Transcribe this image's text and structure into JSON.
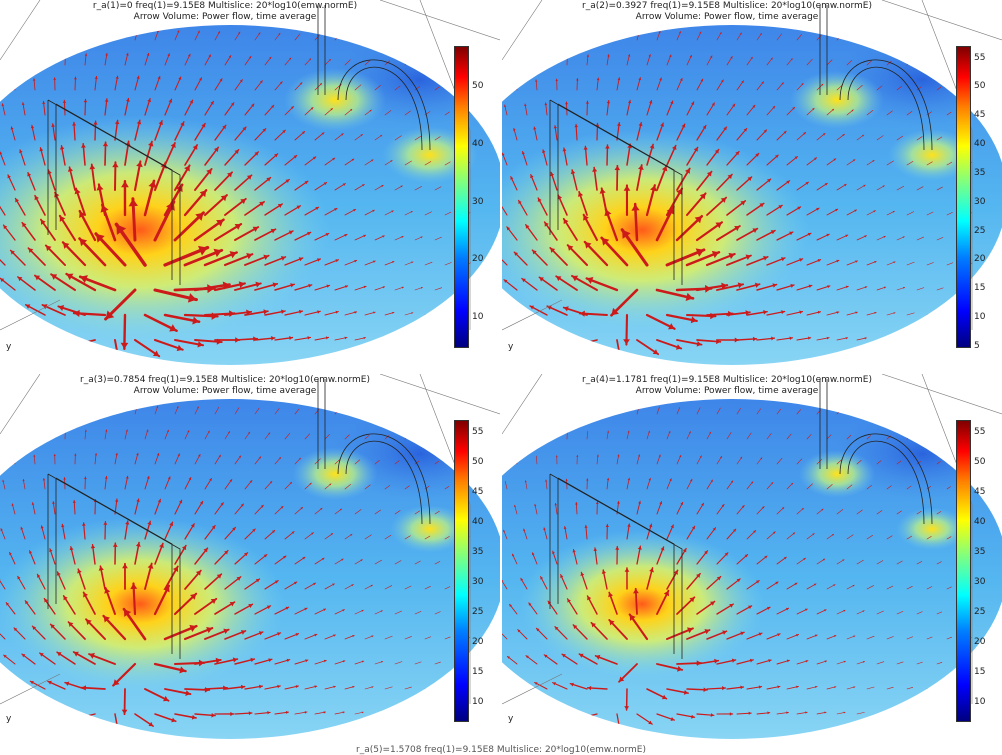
{
  "colorbar_colors": [
    "#00007f",
    "#0000ff",
    "#007fff",
    "#00ffff",
    "#7fff7f",
    "#ffff00",
    "#ff7f00",
    "#ff0000",
    "#7f0000"
  ],
  "arrow_color": "#cc1a1a",
  "panels": [
    {
      "title_line1": "r_a(1)=0 freq(1)=9.15E8   Multislice: 20*log10(emw.normE)",
      "title_line2": "Arrow Volume: Power flow, time average",
      "colorbar_ticks": [
        "50",
        "40",
        "30",
        "20",
        "10"
      ],
      "colorbar_range": [
        5,
        57
      ],
      "axis_label": "y",
      "hotspot_level": 1.0
    },
    {
      "title_line1": "r_a(2)=0.3927 freq(1)=9.15E8   Multislice: 20*log10(emw.normE)",
      "title_line2": "Arrow Volume: Power flow, time average",
      "colorbar_ticks": [
        "55",
        "50",
        "45",
        "40",
        "35",
        "30",
        "25",
        "20",
        "15",
        "10",
        "5"
      ],
      "colorbar_range": [
        5,
        57
      ],
      "axis_label": "y",
      "hotspot_level": 0.85
    },
    {
      "title_line1": "r_a(3)=0.7854 freq(1)=9.15E8   Multislice: 20*log10(emw.normE)",
      "title_line2": "Arrow Volume: Power flow, time average",
      "colorbar_ticks": [
        "55",
        "50",
        "45",
        "40",
        "35",
        "30",
        "25",
        "20",
        "15",
        "10"
      ],
      "colorbar_range": [
        7,
        57
      ],
      "axis_label": "y",
      "hotspot_level": 0.7
    },
    {
      "title_line1": "r_a(4)=1.1781 freq(1)=9.15E8   Multislice: 20*log10(emw.normE)",
      "title_line2": "Arrow Volume: Power flow, time average",
      "colorbar_ticks": [
        "55",
        "50",
        "45",
        "40",
        "35",
        "30",
        "25",
        "20",
        "15",
        "10"
      ],
      "colorbar_range": [
        7,
        57
      ],
      "axis_label": "y",
      "hotspot_level": 0.55
    }
  ],
  "bottom_caption": "r_a(5)=1.5708 freq(1)=9.15E8   Multislice: 20*log10(emw.normE)"
}
